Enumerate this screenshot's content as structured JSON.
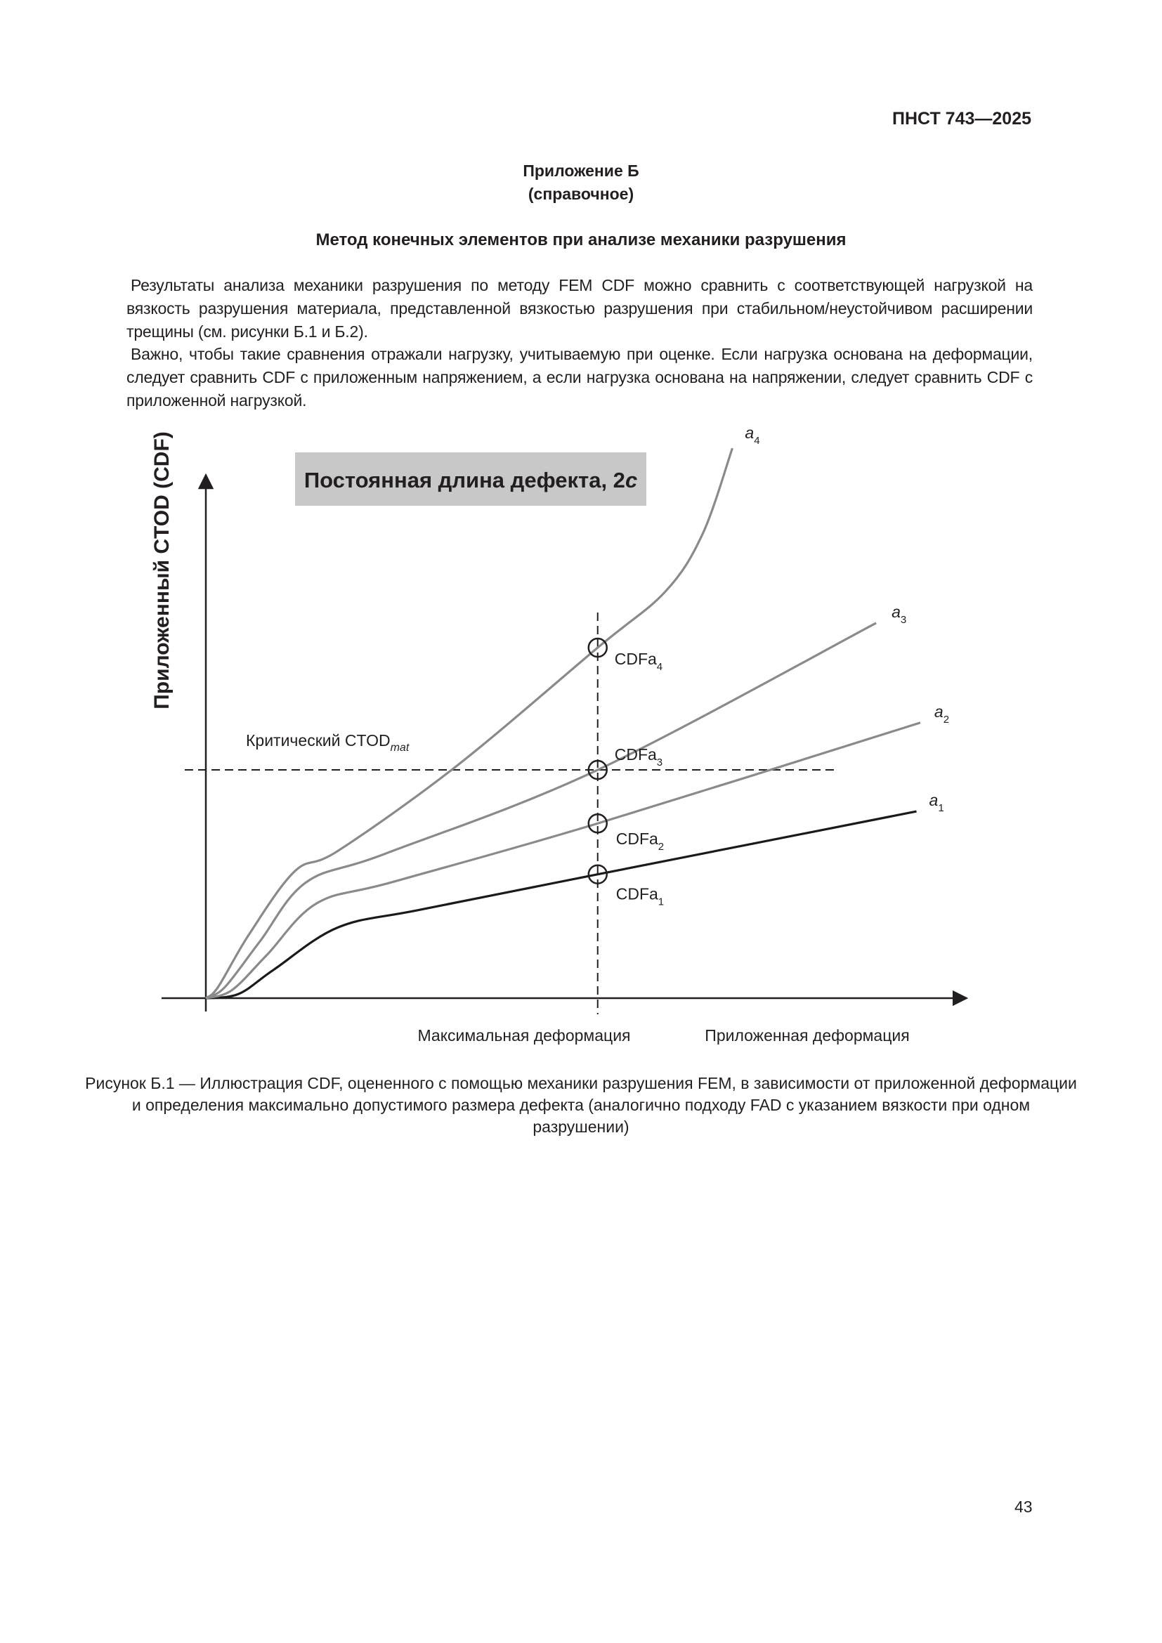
{
  "header": {
    "doc_code": "ПНСТ 743—2025"
  },
  "annex": {
    "title": "Приложение Б",
    "type": "(справочное)"
  },
  "section_title": "Метод конечных элементов при анализе механики разрушения",
  "paragraphs": [
    "Результаты анализа механики разрушения по методу FEM CDF можно сравнить с соответствующей нагрузкой на вязкость разрушения материала, представленной вязкостью разрушения при стабильном/неустойчивом расширении трещины (см. рисунки Б.1 и Б.2).",
    "Важно, чтобы такие сравнения отражали нагрузку, учитываемую при оценке. Если нагрузка основана на деформации, следует сравнить CDF с приложенным напряжением, а если нагрузка основана на напряжении, следует сравнить CDF с приложенной нагрузкой."
  ],
  "chart_data": {
    "type": "line",
    "title": "Постоянная длина дефекта, 2",
    "title_italic": "c",
    "ylabel": "Приложенный CTOD (CDF)",
    "xlabel": "Приложенная деформация",
    "xlim": [
      0,
      100
    ],
    "ylim": [
      0,
      100
    ],
    "grid": false,
    "axis_ticks": false,
    "reference_lines": {
      "critical_ctod": {
        "label": "Критический CTOD",
        "label_sub": "mat",
        "y": 43.5
      },
      "max_deformation": {
        "label": "Максимальная деформация",
        "x": 51.5
      }
    },
    "series": [
      {
        "name": "a",
        "sub": "1",
        "color": "#1a1a1a",
        "points": [
          [
            0,
            0
          ],
          [
            4.3,
            0.8
          ],
          [
            9,
            5.5
          ],
          [
            17.4,
            13.5
          ],
          [
            28.3,
            16.9
          ],
          [
            51.5,
            23.6
          ],
          [
            93.4,
            35.6
          ]
        ],
        "marker_label": "CDFa",
        "marker_y": 23.6
      },
      {
        "name": "a",
        "sub": "2",
        "color": "#8a8a8a",
        "points": [
          [
            0,
            0
          ],
          [
            3.4,
            1.5
          ],
          [
            8,
            8.2
          ],
          [
            14.6,
            18.1
          ],
          [
            24.7,
            22.2
          ],
          [
            51.5,
            33.3
          ],
          [
            93.9,
            52.5
          ]
        ],
        "marker_label": "CDFa",
        "marker_y": 33.3
      },
      {
        "name": "a",
        "sub": "3",
        "color": "#8a8a8a",
        "points": [
          [
            0,
            0
          ],
          [
            2.5,
            2.1
          ],
          [
            7.1,
            10.8
          ],
          [
            13.2,
            22.1
          ],
          [
            23.7,
            27.6
          ],
          [
            51.5,
            43.5
          ],
          [
            88.1,
            71.5
          ]
        ],
        "marker_label": "CDFa",
        "marker_y": 43.5
      },
      {
        "name": "a",
        "sub": "4",
        "color": "#8a8a8a",
        "points": [
          [
            0,
            0
          ],
          [
            1.6,
            2.1
          ],
          [
            5.7,
            12.2
          ],
          [
            11.7,
            24.2
          ],
          [
            17.4,
            28.1
          ],
          [
            33,
            44.3
          ],
          [
            51.5,
            66.8
          ],
          [
            60.4,
            77.5
          ],
          [
            65.3,
            88.5
          ],
          [
            69.2,
            104.8
          ]
        ],
        "marker_label": "CDFa",
        "marker_y": 66.8
      }
    ],
    "title_box_color": "#c8c8c8"
  },
  "caption": "Рисунок Б.1 — Иллюстрация CDF, оцененного с помощью механики разрушения FEM, в зависимости от приложенной деформации и определения максимально допустимого размера дефекта (аналогично подходу FAD с указанием вязкости при одном разрушении)",
  "page_number": "43"
}
